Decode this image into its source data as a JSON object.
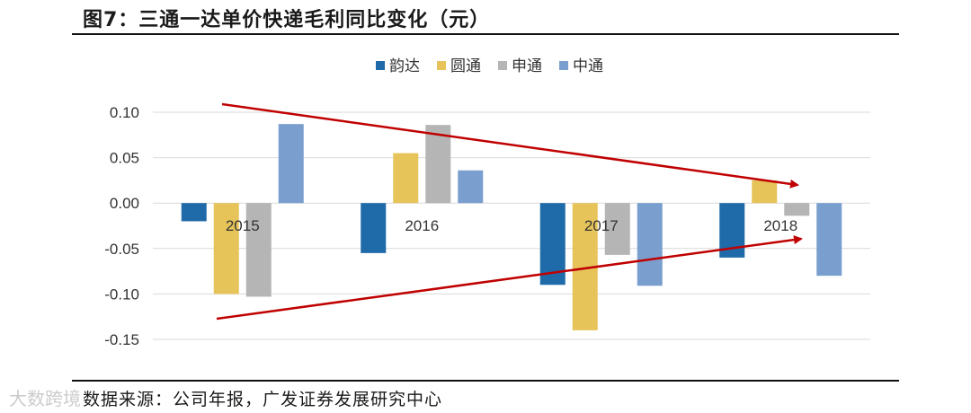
{
  "figure": {
    "title": "图7：三通一达单价快递毛利同比变化（元）",
    "source": "数据来源：公司年报，广发证券发展研究中心",
    "watermark": "大数跨境"
  },
  "colors": {
    "韵达": "#1f6aa8",
    "圆通": "#e6c45a",
    "申通": "#b5b5b5",
    "中通": "#7a9fcf",
    "arrow": "#c00000",
    "grid": "#d9d9d9"
  },
  "chart_data": {
    "type": "bar",
    "title": "",
    "xlabel": "",
    "ylabel": "",
    "categories": [
      "2015",
      "2016",
      "2017",
      "2018"
    ],
    "series": [
      {
        "name": "韵达",
        "values": [
          -0.02,
          -0.055,
          -0.09,
          -0.06
        ]
      },
      {
        "name": "圆通",
        "values": [
          -0.1,
          0.055,
          -0.14,
          0.025
        ]
      },
      {
        "name": "申通",
        "values": [
          -0.103,
          0.086,
          -0.057,
          -0.014
        ]
      },
      {
        "name": "中通",
        "values": [
          0.087,
          0.036,
          -0.091,
          -0.08
        ]
      }
    ],
    "ylim": [
      -0.15,
      0.1
    ],
    "yticks": [
      "0.10",
      "0.05",
      "0.00",
      "-0.05",
      "-0.10",
      "-0.15"
    ],
    "legend_position": "top-center",
    "annotations": [
      "converging red trend arrows"
    ]
  }
}
